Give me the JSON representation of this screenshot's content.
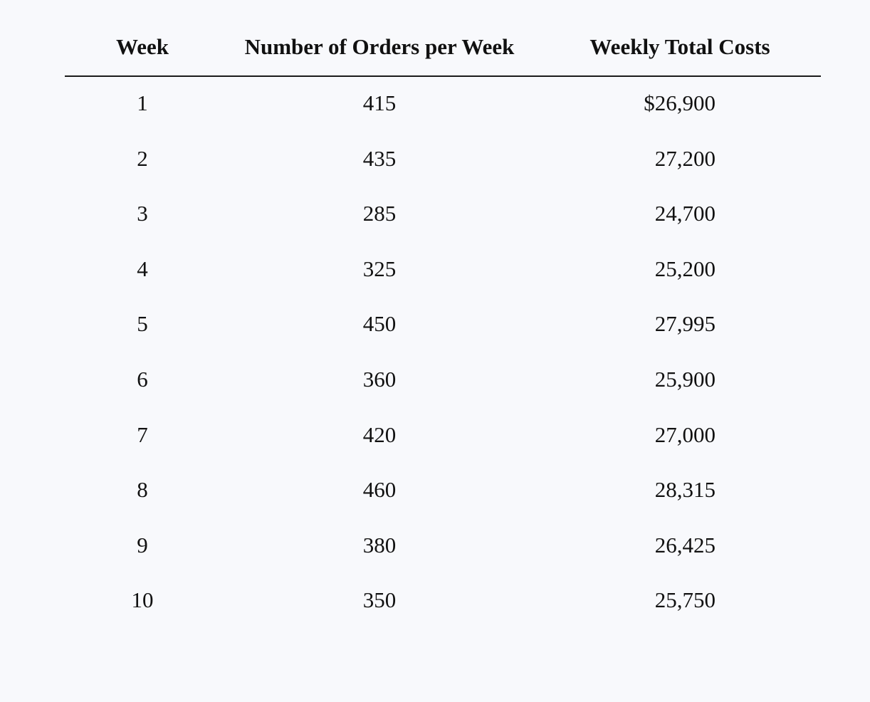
{
  "table": {
    "headers": [
      "Week",
      "Number of Orders per Week",
      "Weekly Total Costs"
    ],
    "rows": [
      [
        "1",
        "415",
        "$26,900"
      ],
      [
        "2",
        "435",
        "27,200"
      ],
      [
        "3",
        "285",
        "24,700"
      ],
      [
        "4",
        "325",
        "25,200"
      ],
      [
        "5",
        "450",
        "27,995"
      ],
      [
        "6",
        "360",
        "25,900"
      ],
      [
        "7",
        "420",
        "27,000"
      ],
      [
        "8",
        "460",
        "28,315"
      ],
      [
        "9",
        "380",
        "26,425"
      ],
      [
        "10",
        "350",
        "25,750"
      ]
    ]
  }
}
